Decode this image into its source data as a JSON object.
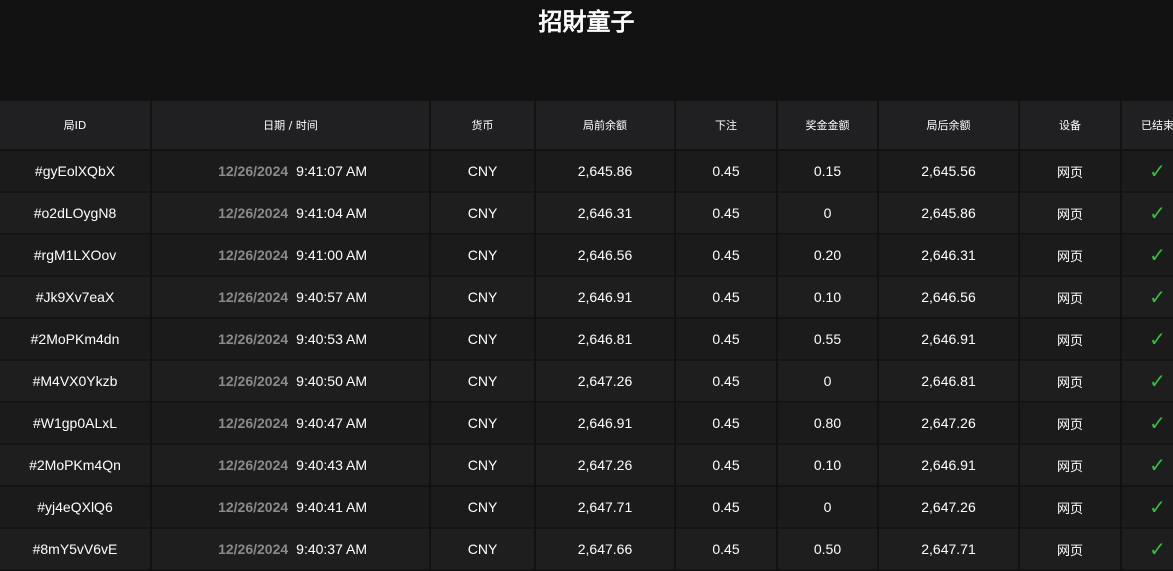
{
  "title": "招財童子",
  "headers": [
    "局ID",
    "日期 / 时间",
    "货币",
    "局前余额",
    "下注",
    "奖金金额",
    "局后余额",
    "设备",
    "已结束"
  ],
  "colors": {
    "check": "#2fc23c",
    "background": "#121212"
  },
  "rows": [
    {
      "id": "#gyEolXQbX",
      "date": "12/26/2024",
      "time": "9:41:07 AM",
      "currency": "CNY",
      "before": "2,645.86",
      "bet": "0.45",
      "win": "0.15",
      "after": "2,645.56",
      "device": "网页",
      "finished": true
    },
    {
      "id": "#o2dLOygN8",
      "date": "12/26/2024",
      "time": "9:41:04 AM",
      "currency": "CNY",
      "before": "2,646.31",
      "bet": "0.45",
      "win": "0",
      "after": "2,645.86",
      "device": "网页",
      "finished": true
    },
    {
      "id": "#rgM1LXOov",
      "date": "12/26/2024",
      "time": "9:41:00 AM",
      "currency": "CNY",
      "before": "2,646.56",
      "bet": "0.45",
      "win": "0.20",
      "after": "2,646.31",
      "device": "网页",
      "finished": true
    },
    {
      "id": "#Jk9Xv7eaX",
      "date": "12/26/2024",
      "time": "9:40:57 AM",
      "currency": "CNY",
      "before": "2,646.91",
      "bet": "0.45",
      "win": "0.10",
      "after": "2,646.56",
      "device": "网页",
      "finished": true
    },
    {
      "id": "#2MoPKm4dn",
      "date": "12/26/2024",
      "time": "9:40:53 AM",
      "currency": "CNY",
      "before": "2,646.81",
      "bet": "0.45",
      "win": "0.55",
      "after": "2,646.91",
      "device": "网页",
      "finished": true
    },
    {
      "id": "#M4VX0Ykzb",
      "date": "12/26/2024",
      "time": "9:40:50 AM",
      "currency": "CNY",
      "before": "2,647.26",
      "bet": "0.45",
      "win": "0",
      "after": "2,646.81",
      "device": "网页",
      "finished": true
    },
    {
      "id": "#W1gp0ALxL",
      "date": "12/26/2024",
      "time": "9:40:47 AM",
      "currency": "CNY",
      "before": "2,646.91",
      "bet": "0.45",
      "win": "0.80",
      "after": "2,647.26",
      "device": "网页",
      "finished": true
    },
    {
      "id": "#2MoPKm4Qn",
      "date": "12/26/2024",
      "time": "9:40:43 AM",
      "currency": "CNY",
      "before": "2,647.26",
      "bet": "0.45",
      "win": "0.10",
      "after": "2,646.91",
      "device": "网页",
      "finished": true
    },
    {
      "id": "#yj4eQXlQ6",
      "date": "12/26/2024",
      "time": "9:40:41 AM",
      "currency": "CNY",
      "before": "2,647.71",
      "bet": "0.45",
      "win": "0",
      "after": "2,647.26",
      "device": "网页",
      "finished": true
    },
    {
      "id": "#8mY5vV6vE",
      "date": "12/26/2024",
      "time": "9:40:37 AM",
      "currency": "CNY",
      "before": "2,647.66",
      "bet": "0.45",
      "win": "0.50",
      "after": "2,647.71",
      "device": "网页",
      "finished": true
    }
  ]
}
